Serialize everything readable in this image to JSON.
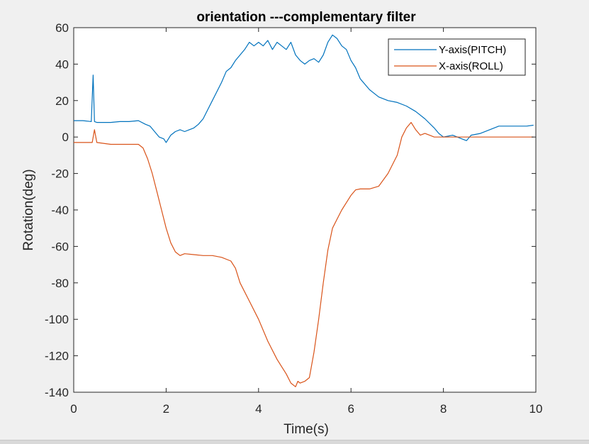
{
  "chart_data": {
    "type": "line",
    "title": "orientation ---complementary filter",
    "xlabel": "Time(s)",
    "ylabel": "Rotation(deg)",
    "xlim": [
      0,
      10
    ],
    "ylim": [
      -140,
      60
    ],
    "xticks": [
      0,
      2,
      4,
      6,
      8,
      10
    ],
    "yticks": [
      60,
      40,
      20,
      0,
      -20,
      -40,
      -60,
      -80,
      -100,
      -120,
      -140
    ],
    "grid": false,
    "legend_position": "top-right",
    "series": [
      {
        "name": "Y-axis(PITCH)",
        "color": "#0072BD",
        "x": [
          0,
          0.2,
          0.38,
          0.42,
          0.45,
          0.5,
          0.8,
          1.0,
          1.2,
          1.4,
          1.55,
          1.65,
          1.75,
          1.85,
          1.95,
          2.0,
          2.1,
          2.2,
          2.3,
          2.4,
          2.5,
          2.6,
          2.7,
          2.8,
          2.9,
          3.0,
          3.1,
          3.2,
          3.3,
          3.4,
          3.5,
          3.6,
          3.7,
          3.8,
          3.9,
          4.0,
          4.1,
          4.2,
          4.3,
          4.4,
          4.5,
          4.6,
          4.7,
          4.8,
          4.9,
          5.0,
          5.1,
          5.2,
          5.3,
          5.4,
          5.5,
          5.6,
          5.7,
          5.8,
          5.9,
          6.0,
          6.1,
          6.2,
          6.4,
          6.6,
          6.8,
          7.0,
          7.2,
          7.4,
          7.6,
          7.8,
          7.9,
          8.0,
          8.2,
          8.4,
          8.5,
          8.6,
          8.8,
          9.0,
          9.2,
          9.4,
          9.6,
          9.8,
          9.95
        ],
        "y": [
          9,
          9,
          8.5,
          34,
          8.5,
          8,
          8,
          8.5,
          8.5,
          9,
          7,
          6,
          3,
          0,
          -1,
          -3,
          1,
          3,
          4,
          3,
          4,
          5,
          7,
          10,
          15,
          20,
          25,
          30,
          36,
          38,
          42,
          45,
          48,
          52,
          50,
          52,
          50,
          53,
          48,
          52,
          50,
          48,
          52,
          45,
          42,
          40,
          42,
          43,
          41,
          45,
          52,
          56,
          54,
          50,
          48,
          42,
          38,
          32,
          26,
          22,
          20,
          19,
          17,
          14,
          10,
          5,
          2,
          0,
          1,
          -1,
          -2,
          1,
          2,
          4,
          6,
          6,
          6,
          6,
          6.5
        ]
      },
      {
        "name": "X-axis(ROLL)",
        "color": "#D95319",
        "x": [
          0,
          0.2,
          0.4,
          0.45,
          0.5,
          0.8,
          1.0,
          1.2,
          1.4,
          1.5,
          1.6,
          1.7,
          1.8,
          1.9,
          2.0,
          2.1,
          2.2,
          2.3,
          2.4,
          2.6,
          2.8,
          3.0,
          3.2,
          3.4,
          3.5,
          3.6,
          3.8,
          4.0,
          4.2,
          4.4,
          4.6,
          4.7,
          4.8,
          4.85,
          4.9,
          5.0,
          5.1,
          5.2,
          5.3,
          5.4,
          5.5,
          5.6,
          5.7,
          5.8,
          5.9,
          6.0,
          6.1,
          6.2,
          6.3,
          6.4,
          6.6,
          6.8,
          7.0,
          7.1,
          7.2,
          7.3,
          7.4,
          7.5,
          7.6,
          7.7,
          7.8,
          7.9,
          8.0,
          8.2,
          8.4,
          8.6,
          8.8,
          9.0,
          9.2,
          9.4,
          9.6,
          9.8,
          9.95
        ],
        "y": [
          -3,
          -3,
          -3,
          4,
          -3,
          -4,
          -4,
          -4,
          -4,
          -6,
          -12,
          -20,
          -30,
          -40,
          -50,
          -58,
          -63,
          -65,
          -64,
          -64.5,
          -65,
          -65,
          -66,
          -68,
          -72,
          -80,
          -90,
          -100,
          -112,
          -122,
          -130,
          -135,
          -137,
          -134,
          -135,
          -134,
          -132,
          -118,
          -100,
          -80,
          -62,
          -50,
          -45,
          -40,
          -36,
          -32,
          -29,
          -28.5,
          -28.5,
          -28.5,
          -27,
          -20,
          -10,
          0,
          5,
          8,
          4,
          1,
          2,
          1,
          0,
          0,
          0,
          0,
          0,
          0,
          0,
          0,
          0,
          0,
          0,
          0,
          0
        ]
      }
    ]
  }
}
